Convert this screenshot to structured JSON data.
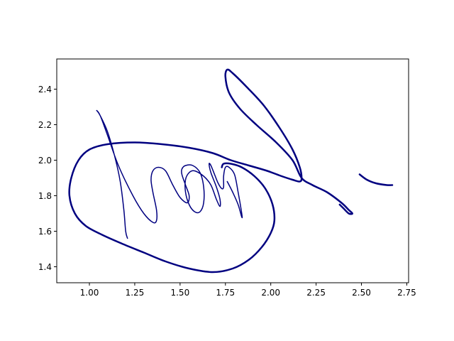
{
  "chart_data": {
    "type": "line",
    "title": "",
    "xlabel": "",
    "ylabel": "",
    "xlim": [
      0.82,
      2.76
    ],
    "ylim": [
      2.57,
      1.31
    ],
    "y_inverted": true,
    "grid": false,
    "x_ticks": [
      {
        "value": 1.0,
        "label": "1.00"
      },
      {
        "value": 1.25,
        "label": "1.25"
      },
      {
        "value": 1.5,
        "label": "1.50"
      },
      {
        "value": 1.75,
        "label": "1.75"
      },
      {
        "value": 2.0,
        "label": "2.00"
      },
      {
        "value": 2.25,
        "label": "2.25"
      },
      {
        "value": 2.5,
        "label": "2.50"
      },
      {
        "value": 2.75,
        "label": "2.75"
      }
    ],
    "y_ticks": [
      {
        "value": 1.4,
        "label": "1.4"
      },
      {
        "value": 1.6,
        "label": "1.6"
      },
      {
        "value": 1.8,
        "label": "1.8"
      },
      {
        "value": 2.0,
        "label": "2.0"
      },
      {
        "value": 2.2,
        "label": "2.2"
      },
      {
        "value": 2.4,
        "label": "2.4"
      }
    ],
    "color": "#000080",
    "series": [
      {
        "width": 1.5,
        "points": [
          [
            1.21,
            1.56
          ],
          [
            1.2,
            1.6
          ],
          [
            1.19,
            1.72
          ],
          [
            1.17,
            1.88
          ],
          [
            1.14,
            2.02
          ],
          [
            1.1,
            2.16
          ],
          [
            1.06,
            2.25
          ],
          [
            1.04,
            2.28
          ],
          [
            1.06,
            2.25
          ],
          [
            1.1,
            2.14
          ],
          [
            1.16,
            1.97
          ],
          [
            1.24,
            1.8
          ],
          [
            1.3,
            1.7
          ],
          [
            1.35,
            1.65
          ],
          [
            1.37,
            1.66
          ],
          [
            1.37,
            1.72
          ],
          [
            1.35,
            1.82
          ],
          [
            1.34,
            1.89
          ],
          [
            1.35,
            1.94
          ],
          [
            1.38,
            1.96
          ],
          [
            1.42,
            1.94
          ],
          [
            1.46,
            1.86
          ],
          [
            1.5,
            1.79
          ],
          [
            1.54,
            1.76
          ],
          [
            1.55,
            1.8
          ],
          [
            1.53,
            1.86
          ],
          [
            1.51,
            1.92
          ],
          [
            1.51,
            1.95
          ],
          [
            1.53,
            1.97
          ],
          [
            1.57,
            1.97
          ],
          [
            1.61,
            1.93
          ],
          [
            1.63,
            1.85
          ],
          [
            1.63,
            1.76
          ],
          [
            1.61,
            1.71
          ],
          [
            1.58,
            1.71
          ],
          [
            1.55,
            1.75
          ],
          [
            1.53,
            1.82
          ],
          [
            1.53,
            1.89
          ],
          [
            1.55,
            1.93
          ],
          [
            1.58,
            1.94
          ],
          [
            1.63,
            1.91
          ],
          [
            1.67,
            1.86
          ],
          [
            1.7,
            1.78
          ],
          [
            1.72,
            1.74
          ],
          [
            1.72,
            1.78
          ],
          [
            1.7,
            1.85
          ],
          [
            1.67,
            1.93
          ],
          [
            1.66,
            1.98
          ],
          [
            1.67,
            1.97
          ],
          [
            1.69,
            1.92
          ],
          [
            1.71,
            1.87
          ],
          [
            1.73,
            1.84
          ],
          [
            1.74,
            1.85
          ],
          [
            1.74,
            1.91
          ],
          [
            1.75,
            1.96
          ],
          [
            1.77,
            1.96
          ],
          [
            1.8,
            1.92
          ],
          [
            1.82,
            1.82
          ],
          [
            1.84,
            1.7
          ],
          [
            1.84,
            1.68
          ],
          [
            1.82,
            1.75
          ],
          [
            1.79,
            1.82
          ],
          [
            1.76,
            1.88
          ]
        ]
      },
      {
        "width": 2.5,
        "points": [
          [
            1.73,
            1.96
          ],
          [
            1.74,
            1.98
          ],
          [
            1.78,
            1.98
          ],
          [
            1.84,
            1.96
          ],
          [
            1.91,
            1.91
          ],
          [
            1.97,
            1.84
          ],
          [
            2.01,
            1.75
          ],
          [
            2.02,
            1.66
          ],
          [
            2.0,
            1.59
          ],
          [
            1.95,
            1.51
          ],
          [
            1.88,
            1.44
          ],
          [
            1.79,
            1.39
          ],
          [
            1.68,
            1.37
          ],
          [
            1.55,
            1.39
          ],
          [
            1.42,
            1.43
          ],
          [
            1.3,
            1.48
          ],
          [
            1.18,
            1.53
          ],
          [
            1.07,
            1.58
          ],
          [
            0.98,
            1.63
          ],
          [
            0.92,
            1.7
          ],
          [
            0.89,
            1.8
          ],
          [
            0.9,
            1.9
          ],
          [
            0.94,
            2.0
          ],
          [
            1.0,
            2.06
          ],
          [
            1.1,
            2.09
          ],
          [
            1.25,
            2.1
          ],
          [
            1.4,
            2.09
          ],
          [
            1.55,
            2.07
          ],
          [
            1.68,
            2.04
          ],
          [
            1.78,
            2.0
          ],
          [
            1.88,
            1.97
          ],
          [
            1.98,
            1.94
          ],
          [
            2.06,
            1.91
          ],
          [
            2.12,
            1.89
          ],
          [
            2.16,
            1.88
          ],
          [
            2.17,
            1.9
          ],
          [
            2.16,
            1.96
          ],
          [
            2.12,
            2.06
          ],
          [
            2.05,
            2.18
          ],
          [
            1.96,
            2.31
          ],
          [
            1.86,
            2.42
          ],
          [
            1.79,
            2.49
          ],
          [
            1.76,
            2.51
          ],
          [
            1.75,
            2.47
          ],
          [
            1.77,
            2.38
          ],
          [
            1.83,
            2.29
          ],
          [
            1.92,
            2.2
          ],
          [
            2.03,
            2.1
          ],
          [
            2.12,
            2.0
          ],
          [
            2.17,
            1.9
          ],
          [
            2.23,
            1.86
          ],
          [
            2.31,
            1.82
          ],
          [
            2.39,
            1.76
          ],
          [
            2.43,
            1.72
          ],
          [
            2.45,
            1.7
          ],
          [
            2.43,
            1.7
          ],
          [
            2.4,
            1.73
          ],
          [
            2.38,
            1.75
          ]
        ]
      },
      {
        "width": 2.5,
        "points": [
          [
            2.49,
            1.92
          ],
          [
            2.53,
            1.89
          ],
          [
            2.58,
            1.87
          ],
          [
            2.64,
            1.86
          ],
          [
            2.67,
            1.86
          ]
        ]
      }
    ]
  }
}
